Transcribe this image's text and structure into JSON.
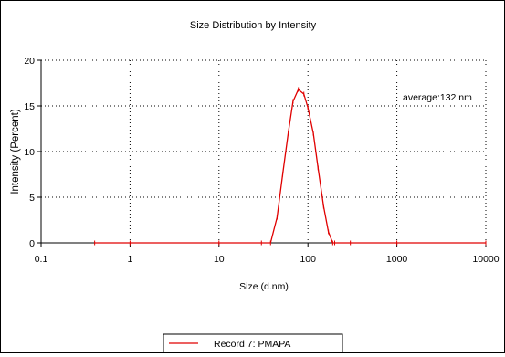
{
  "chart_data": {
    "type": "line",
    "title": "Size Distribution by Intensity",
    "xlabel": "Size (d.nm)",
    "ylabel": "Intensity (Percent)",
    "xscale": "log",
    "xlim": [
      0.1,
      10000
    ],
    "ylim": [
      0,
      20
    ],
    "xticks": [
      0.1,
      1,
      10,
      100,
      1000,
      10000
    ],
    "xtick_labels": [
      "0.1",
      "1",
      "10",
      "100",
      "1000",
      "10000"
    ],
    "yticks": [
      0,
      5,
      10,
      15,
      20
    ],
    "ytick_labels": [
      "0",
      "5",
      "10",
      "15",
      "20"
    ],
    "grid": true,
    "legend_position": "bottom-center",
    "annotation": "average:132 nm",
    "series": [
      {
        "name": "Record 7:  PMAPA",
        "color": "#e00000",
        "x": [
          0.4,
          1,
          10,
          30,
          38,
          45,
          52,
          60,
          68,
          78,
          90,
          100,
          115,
          130,
          150,
          170,
          190,
          200,
          300,
          1000,
          10000
        ],
        "y": [
          0,
          0,
          0,
          0,
          0,
          2.8,
          7.5,
          12.0,
          15.5,
          16.8,
          16.3,
          14.8,
          12.0,
          8.2,
          4.0,
          1.2,
          0,
          0,
          0,
          0,
          0
        ]
      }
    ]
  }
}
